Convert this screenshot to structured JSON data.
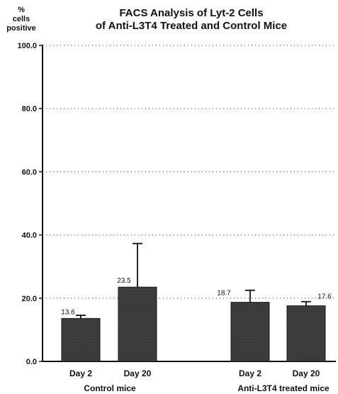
{
  "title_line1": "FACS Analysis of Lyt-2 Cells",
  "title_line2": "of Anti-L3T4 Treated and Control Mice",
  "ylabel_lines": [
    "%",
    "cells",
    "positive"
  ],
  "chart_data": {
    "type": "bar",
    "title": "FACS Analysis of Lyt-2 Cells of Anti-L3T4 Treated and Control Mice",
    "ylabel": "% cells positive",
    "ylim": [
      0,
      100
    ],
    "yticks": [
      "0.0",
      "20.0",
      "40.0",
      "60.0",
      "80.0",
      "100.0"
    ],
    "grid": "dotted horizontal",
    "groups": [
      {
        "label": "Control mice",
        "categories": [
          "Day 2",
          "Day 20"
        ]
      },
      {
        "label": "Anti-L3T4 treated mice",
        "categories": [
          "Day 2",
          "Day 20"
        ]
      }
    ],
    "categories": [
      "Day 2",
      "Day 20",
      "Day 2",
      "Day 20"
    ],
    "values": [
      13.6,
      23.5,
      18.7,
      17.6
    ],
    "value_labels": [
      "13.6",
      "23.5",
      "18.7",
      "17.6"
    ],
    "error_upper": [
      14.6,
      37.3,
      22.5,
      18.9
    ],
    "bar_color": "#3a3a3a"
  }
}
